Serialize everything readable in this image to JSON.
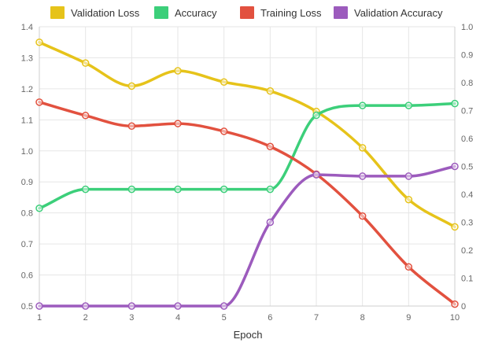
{
  "chart_data": {
    "type": "line",
    "title": "",
    "xlabel": "Epoch",
    "ylabel": "",
    "x": [
      1,
      2,
      3,
      4,
      5,
      6,
      7,
      8,
      9,
      10
    ],
    "x_tick_labels": [
      "1",
      "2",
      "3",
      "4",
      "5",
      "6",
      "7",
      "8",
      "9",
      "10"
    ],
    "ylim_left": [
      0.5,
      1.4
    ],
    "y_left_ticks": [
      0.5,
      0.6,
      0.7,
      0.8,
      0.9,
      1.0,
      1.1,
      1.2,
      1.3,
      1.4
    ],
    "y_left_tick_labels": [
      "0.5",
      "0.6",
      "0.7",
      "0.8",
      "0.9",
      "1.0",
      "1.1",
      "1.2",
      "1.3",
      "1.4"
    ],
    "ylim_right": [
      0,
      1.0
    ],
    "y_right_ticks": [
      0,
      0.1,
      0.2,
      0.3,
      0.4,
      0.5,
      0.6,
      0.7,
      0.8,
      0.9,
      1.0
    ],
    "y_right_tick_labels": [
      "0",
      "0.1",
      "0.2",
      "0.3",
      "0.4",
      "0.5",
      "0.6",
      "0.7",
      "0.8",
      "0.9",
      "1.0"
    ],
    "grid": true,
    "legend_position": "top",
    "series": [
      {
        "name": "Validation Loss",
        "axis": "left",
        "color": "#e6c31a",
        "values": [
          1.35,
          1.283,
          1.209,
          1.258,
          1.222,
          1.193,
          1.127,
          1.01,
          0.843,
          0.755
        ]
      },
      {
        "name": "Accuracy",
        "axis": "right",
        "color": "#3ccf7a",
        "values": [
          0.35,
          0.418,
          0.418,
          0.418,
          0.418,
          0.418,
          0.683,
          0.718,
          0.718,
          0.725
        ]
      },
      {
        "name": "Training Loss",
        "axis": "left",
        "color": "#e2513f",
        "values": [
          1.157,
          1.114,
          1.08,
          1.088,
          1.063,
          1.014,
          0.925,
          0.79,
          0.626,
          0.506
        ]
      },
      {
        "name": "Validation Accuracy",
        "axis": "right",
        "color": "#9c5bbd",
        "values": [
          0,
          0,
          0,
          0,
          0,
          0.3,
          0.47,
          0.465,
          0.465,
          0.5
        ]
      }
    ]
  }
}
